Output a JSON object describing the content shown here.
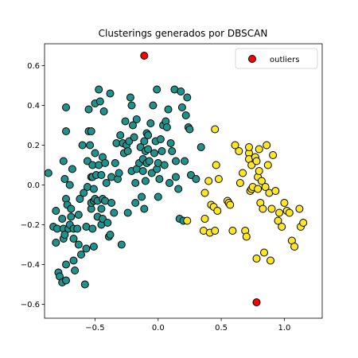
{
  "chart_data": {
    "type": "scatter",
    "title": "Clusterings generados por DBSCAN",
    "xlim": [
      -0.9,
      1.3
    ],
    "ylim": [
      -0.67,
      0.71
    ],
    "xticks": [
      -0.5,
      0.0,
      0.5,
      1.0
    ],
    "xtick_labels": [
      "−0.5",
      "0.0",
      "0.5",
      "1.0"
    ],
    "yticks": [
      -0.6,
      -0.4,
      -0.2,
      0.0,
      0.2,
      0.4,
      0.6
    ],
    "ytick_labels": [
      "−0.6",
      "−0.4",
      "−0.2",
      "0.0",
      "0.2",
      "0.4",
      "0.6"
    ],
    "grid": false,
    "legend": {
      "position": "top-right",
      "entries": [
        {
          "label": "outliers",
          "color": "#ff0000"
        }
      ]
    },
    "colors": {
      "cluster_teal": "#21918c",
      "cluster_yellow": "#fde725",
      "outlier": "#ff0000",
      "edge": "#000000"
    },
    "series": [
      {
        "color": "#21918c",
        "points": [
          [
            -0.87,
            0.06
          ],
          [
            -0.83,
            -0.21
          ],
          [
            -0.81,
            -0.13
          ],
          [
            -0.81,
            -0.29
          ],
          [
            -0.8,
            -0.22
          ],
          [
            -0.79,
            -0.44
          ],
          [
            -0.78,
            -0.46
          ],
          [
            -0.76,
            -0.17
          ],
          [
            -0.76,
            -0.49
          ],
          [
            -0.75,
            -0.22
          ],
          [
            -0.75,
            -0.27
          ],
          [
            -0.75,
            0.12
          ],
          [
            -0.74,
            -0.25
          ],
          [
            -0.74,
            0.03
          ],
          [
            -0.73,
            -0.4
          ],
          [
            -0.73,
            0.39
          ],
          [
            -0.73,
            -0.07
          ],
          [
            -0.73,
            0.27
          ],
          [
            -0.73,
            -0.48
          ],
          [
            -0.72,
            -0.1
          ],
          [
            -0.71,
            -0.22
          ],
          [
            -0.7,
            -0.2
          ],
          [
            -0.7,
            0.0
          ],
          [
            -0.69,
            -0.16
          ],
          [
            -0.69,
            -0.12
          ],
          [
            -0.68,
            0.08
          ],
          [
            -0.67,
            -0.22
          ],
          [
            -0.67,
            -0.38
          ],
          [
            -0.67,
            -0.27
          ],
          [
            -0.66,
            -0.43
          ],
          [
            -0.64,
            -0.22
          ],
          [
            -0.63,
            -0.3
          ],
          [
            -0.63,
            -0.15
          ],
          [
            -0.62,
            -0.07
          ],
          [
            -0.61,
            -0.35
          ],
          [
            -0.6,
            0.2
          ],
          [
            -0.59,
            -0.04
          ],
          [
            -0.58,
            -0.5
          ],
          [
            -0.57,
            -0.32
          ],
          [
            -0.57,
            -0.21
          ],
          [
            -0.56,
            -0.01
          ],
          [
            -0.56,
            0.12
          ],
          [
            -0.55,
            0.27
          ],
          [
            -0.55,
            0.38
          ],
          [
            -0.54,
            0.2
          ],
          [
            -0.53,
            -0.12
          ],
          [
            -0.53,
            0.04
          ],
          [
            -0.53,
            -0.09
          ],
          [
            -0.53,
            0.27
          ],
          [
            -0.52,
            -0.22
          ],
          [
            -0.52,
            0.1
          ],
          [
            -0.52,
            0.04
          ],
          [
            -0.51,
            -0.31
          ],
          [
            -0.51,
            -0.08
          ],
          [
            -0.51,
            -0.02
          ],
          [
            -0.5,
            0.41
          ],
          [
            -0.5,
            -0.07
          ],
          [
            -0.5,
            0.16
          ],
          [
            -0.49,
            0.05
          ],
          [
            -0.48,
            -0.16
          ],
          [
            -0.48,
            -0.08
          ],
          [
            -0.47,
            0.48
          ],
          [
            -0.47,
            0.1
          ],
          [
            -0.46,
            0.42
          ],
          [
            -0.45,
            -0.12
          ],
          [
            -0.45,
            -0.2
          ],
          [
            -0.45,
            0.05
          ],
          [
            -0.44,
            0.14
          ],
          [
            -0.44,
            -0.07
          ],
          [
            -0.44,
            -0.17
          ],
          [
            -0.43,
            0.37
          ],
          [
            -0.42,
            -0.08
          ],
          [
            -0.42,
            0.11
          ],
          [
            -0.41,
            0.01
          ],
          [
            -0.4,
            -0.19
          ],
          [
            -0.39,
            -0.26
          ],
          [
            -0.38,
            0.46
          ],
          [
            -0.38,
            -0.25
          ],
          [
            -0.37,
            0.04
          ],
          [
            -0.37,
            -0.09
          ],
          [
            -0.35,
            -0.14
          ],
          [
            -0.34,
            0.11
          ],
          [
            -0.33,
            0.21
          ],
          [
            -0.32,
            0.03
          ],
          [
            -0.31,
            0.06
          ],
          [
            -0.3,
            0.25
          ],
          [
            -0.29,
            -0.3
          ],
          [
            -0.28,
            0.21
          ],
          [
            -0.27,
            0.16
          ],
          [
            -0.26,
            0.32
          ],
          [
            -0.25,
            0.2
          ],
          [
            -0.24,
            -0.14
          ],
          [
            -0.24,
            0.17
          ],
          [
            -0.23,
            0.22
          ],
          [
            -0.22,
            0.44
          ],
          [
            -0.21,
            0.4
          ],
          [
            -0.21,
            0.07
          ],
          [
            -0.2,
            0.3
          ],
          [
            -0.19,
            0.24
          ],
          [
            -0.18,
            -0.09
          ],
          [
            -0.18,
            0.01
          ],
          [
            -0.17,
            0.33
          ],
          [
            -0.17,
            0.08
          ],
          [
            -0.15,
            0.11
          ],
          [
            -0.14,
            0.19
          ],
          [
            -0.13,
            -0.06
          ],
          [
            -0.12,
            0.07
          ],
          [
            -0.12,
            0.13
          ],
          [
            -0.11,
            0.22
          ],
          [
            -0.11,
            -0.12
          ],
          [
            -0.1,
            0.17
          ],
          [
            -0.1,
            0.02
          ],
          [
            -0.09,
            0.11
          ],
          [
            -0.09,
            0.26
          ],
          [
            -0.08,
            0.18
          ],
          [
            -0.08,
            0.25
          ],
          [
            -0.07,
            0.12
          ],
          [
            -0.06,
            0.31
          ],
          [
            -0.05,
            0.06
          ],
          [
            -0.04,
            0.4
          ],
          [
            -0.03,
            0.16
          ],
          [
            -0.02,
            0.22
          ],
          [
            -0.01,
            0.48
          ],
          [
            -0.01,
            0.08
          ],
          [
            0.0,
            0.11
          ],
          [
            0.0,
            -0.06
          ],
          [
            0.01,
            0.03
          ],
          [
            0.02,
            0.23
          ],
          [
            0.03,
            0.17
          ],
          [
            0.04,
            0.3
          ],
          [
            0.05,
            0.1
          ],
          [
            0.06,
            0.32
          ],
          [
            0.07,
            0.29
          ],
          [
            0.08,
            0.38
          ],
          [
            0.09,
            0.01
          ],
          [
            0.1,
            0.21
          ],
          [
            0.11,
            0.17
          ],
          [
            0.13,
            0.48
          ],
          [
            0.14,
            0.12
          ],
          [
            0.14,
            0.04
          ],
          [
            0.16,
            -0.02
          ],
          [
            0.17,
            -0.17
          ],
          [
            0.18,
            0.47
          ],
          [
            0.19,
            0.39
          ],
          [
            0.2,
            -0.18
          ],
          [
            0.21,
            0.12
          ],
          [
            0.22,
            0.35
          ],
          [
            0.23,
            0.44
          ],
          [
            0.24,
            0.29
          ],
          [
            0.25,
            0.28
          ],
          [
            0.26,
            0.05
          ],
          [
            0.3,
            0.03
          ],
          [
            0.34,
            0.19
          ]
        ]
      },
      {
        "color": "#fde725",
        "points": [
          [
            0.23,
            -0.18
          ],
          [
            0.36,
            -0.23
          ],
          [
            0.37,
            -0.04
          ],
          [
            0.37,
            -0.17
          ],
          [
            0.4,
            0.02
          ],
          [
            0.41,
            -0.24
          ],
          [
            0.42,
            -0.1
          ],
          [
            0.44,
            -0.11
          ],
          [
            0.45,
            -0.23
          ],
          [
            0.45,
            0.28
          ],
          [
            0.46,
            0.1
          ],
          [
            0.47,
            -0.13
          ],
          [
            0.48,
            0.03
          ],
          [
            0.55,
            -0.08
          ],
          [
            0.56,
            -0.09
          ],
          [
            0.57,
            -0.1
          ],
          [
            0.59,
            -0.23
          ],
          [
            0.61,
            0.2
          ],
          [
            0.64,
            0.17
          ],
          [
            0.65,
            0.01
          ],
          [
            0.67,
            0.06
          ],
          [
            0.69,
            -0.23
          ],
          [
            0.7,
            -0.26
          ],
          [
            0.72,
            0.16
          ],
          [
            0.72,
            0.19
          ],
          [
            0.72,
            0.13
          ],
          [
            0.73,
            -0.03
          ],
          [
            0.74,
            -0.02
          ],
          [
            0.74,
            0.1
          ],
          [
            0.75,
            -0.01
          ],
          [
            0.77,
            0.14
          ],
          [
            0.78,
            0.12
          ],
          [
            0.78,
            -0.37
          ],
          [
            0.79,
            0.04
          ],
          [
            0.79,
            -0.02
          ],
          [
            0.8,
            0.18
          ],
          [
            0.8,
            0.07
          ],
          [
            0.81,
            -0.09
          ],
          [
            0.82,
            0.02
          ],
          [
            0.83,
            -0.12
          ],
          [
            0.84,
            -0.34
          ],
          [
            0.85,
            -0.01
          ],
          [
            0.86,
            0.2
          ],
          [
            0.87,
            0.1
          ],
          [
            0.88,
            -0.04
          ],
          [
            0.89,
            -0.38
          ],
          [
            0.9,
            -0.12
          ],
          [
            0.91,
            0.15
          ],
          [
            0.93,
            -0.03
          ],
          [
            0.95,
            -0.18
          ],
          [
            0.96,
            -0.14
          ],
          [
            0.98,
            -0.21
          ],
          [
            1.0,
            -0.09
          ],
          [
            1.02,
            -0.13
          ],
          [
            1.04,
            -0.14
          ],
          [
            1.06,
            -0.28
          ],
          [
            1.08,
            -0.31
          ],
          [
            1.12,
            -0.12
          ],
          [
            1.13,
            -0.21
          ],
          [
            1.15,
            -0.19
          ]
        ]
      },
      {
        "name": "outliers",
        "color": "#ff0000",
        "points": [
          [
            -0.11,
            0.65
          ],
          [
            0.78,
            -0.59
          ]
        ]
      }
    ]
  }
}
